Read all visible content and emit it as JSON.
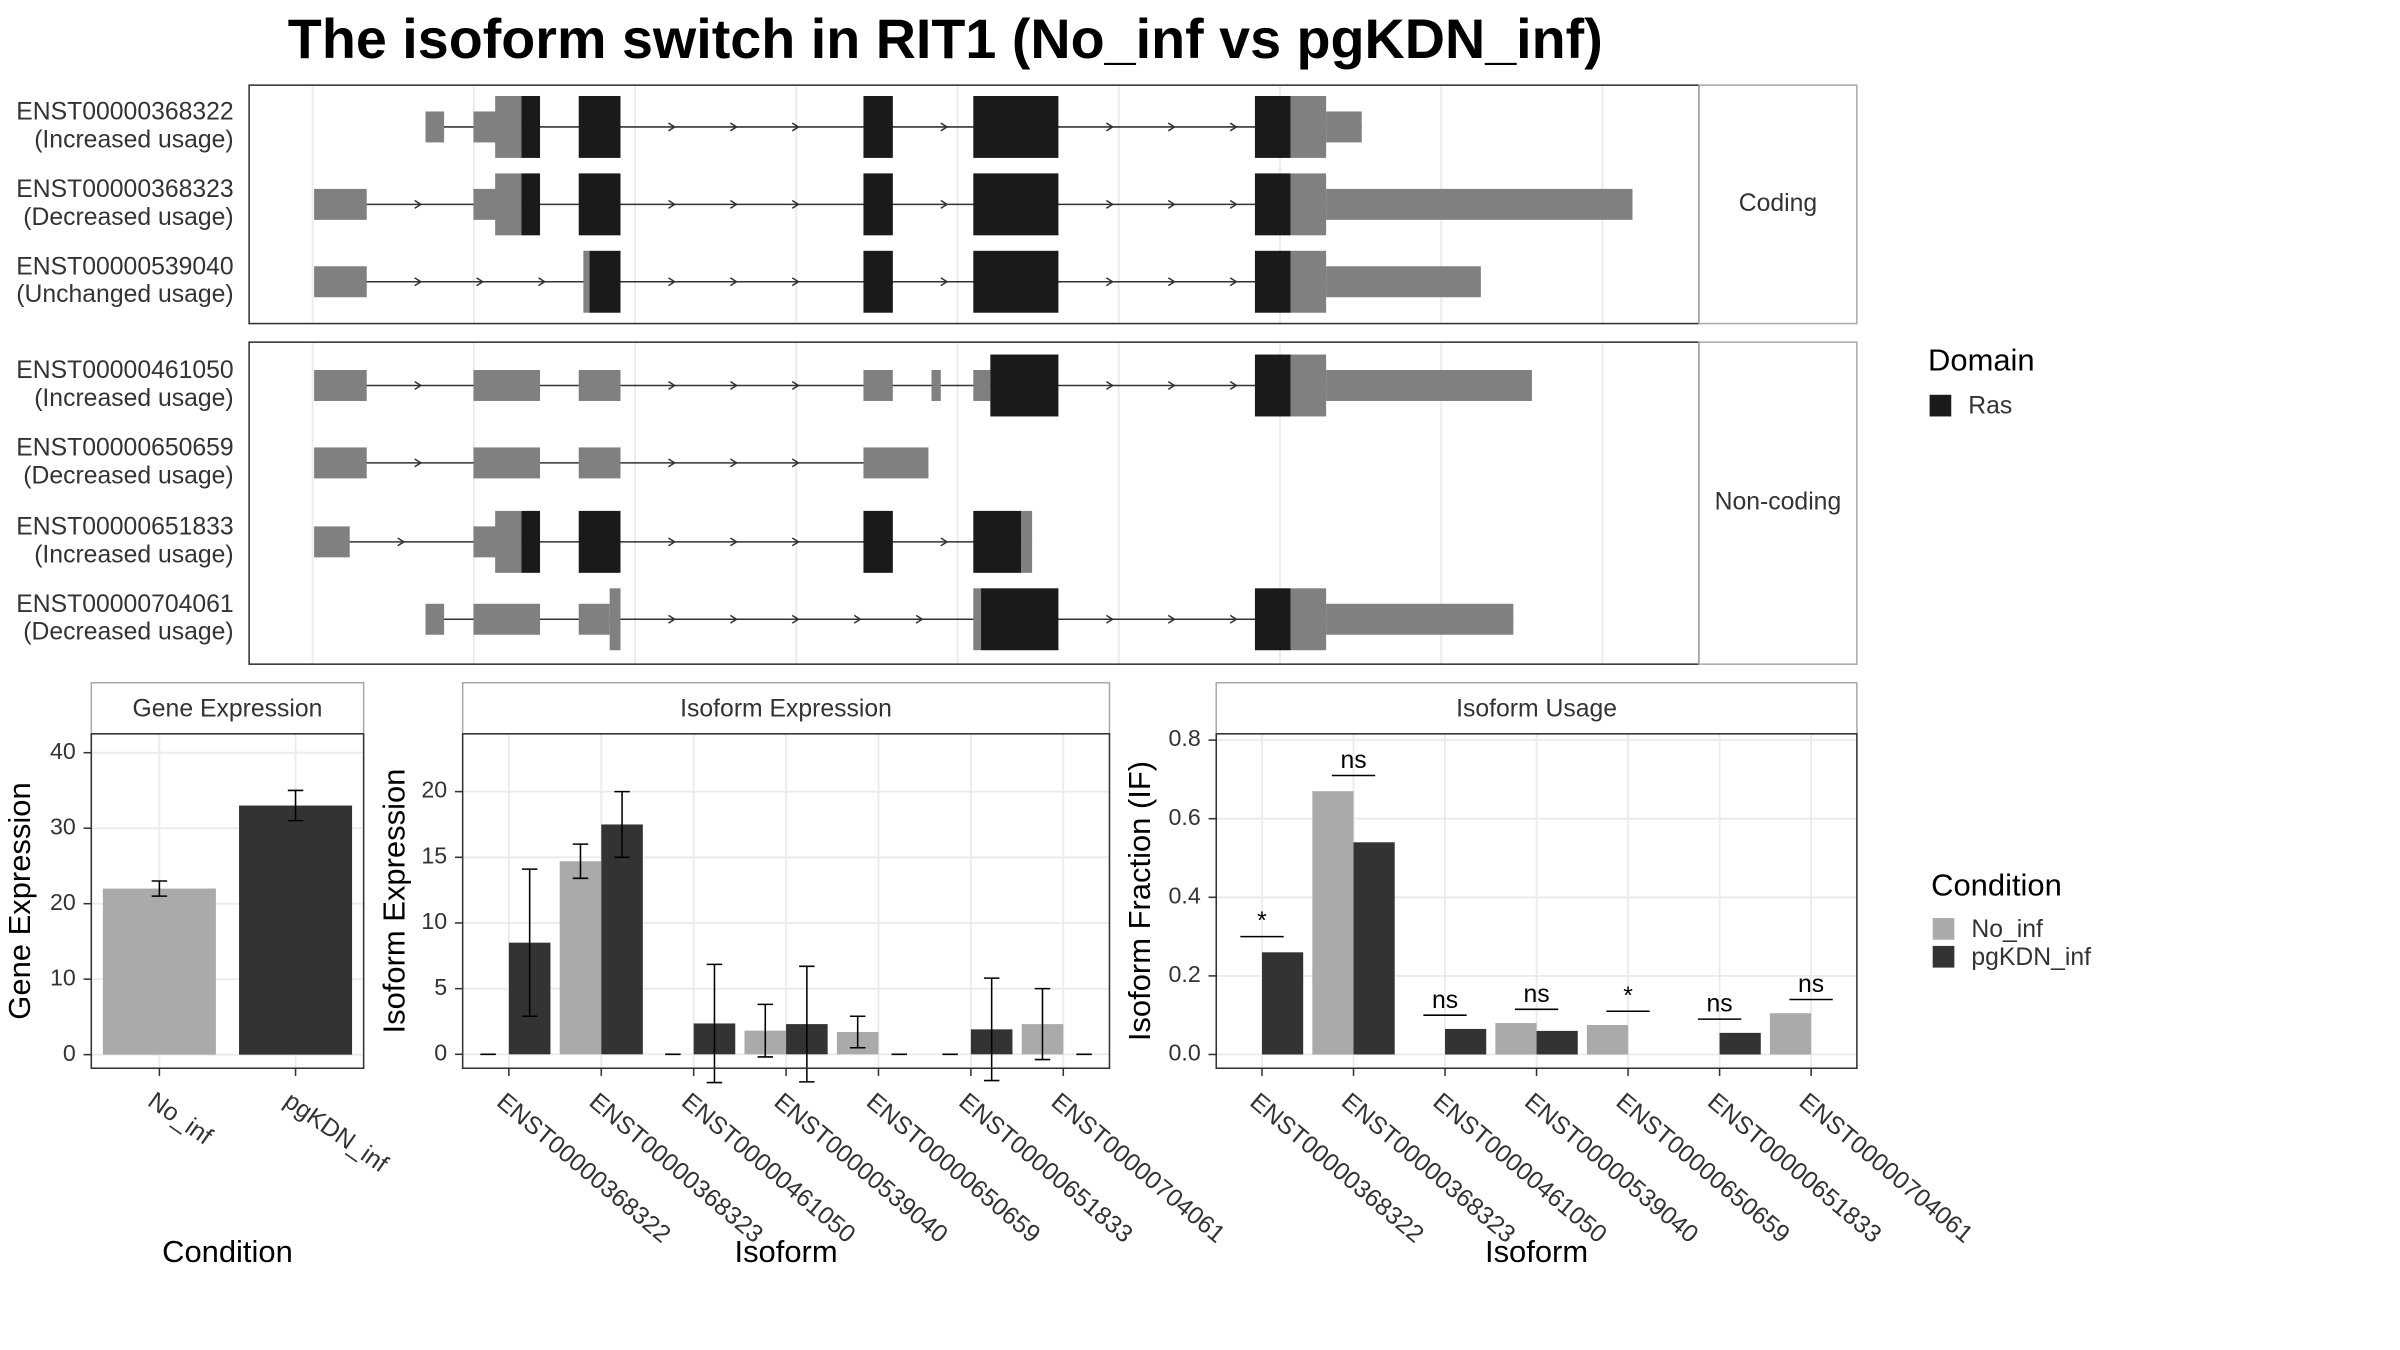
{
  "title": "The isoform switch in RIT1 (No_inf vs pgKDN_inf)",
  "transcript_plot": {
    "groups": [
      {
        "label": "Coding",
        "transcripts": [
          {
            "id": "ENST00000368322",
            "usage": "(Increased usage)"
          },
          {
            "id": "ENST00000368323",
            "usage": "(Decreased usage)"
          },
          {
            "id": "ENST00000539040",
            "usage": "(Unchanged usage)"
          }
        ]
      },
      {
        "label": "Non-coding",
        "transcripts": [
          {
            "id": "ENST00000461050",
            "usage": "(Increased usage)"
          },
          {
            "id": "ENST00000650659",
            "usage": "(Decreased usage)"
          },
          {
            "id": "ENST00000651833",
            "usage": "(Increased usage)"
          },
          {
            "id": "ENST00000704061",
            "usage": "(Decreased usage)"
          }
        ]
      }
    ],
    "legend_title": "Domain",
    "domains": [
      {
        "name": "Ras",
        "color": "#1a1a1a"
      }
    ]
  },
  "chart_data": [
    {
      "type": "bar",
      "title": "Gene Expression",
      "xlabel": "Condition",
      "ylabel": "Gene Expression",
      "categories": [
        "No_inf",
        "pgKDN_inf"
      ],
      "values": [
        22,
        33
      ],
      "errors": [
        1,
        2
      ],
      "colors": [
        "#aaaaaa",
        "#333333"
      ],
      "ylim": [
        -1.8,
        42.5
      ],
      "yticks": [
        0,
        10,
        20,
        30,
        40
      ],
      "grid": true
    },
    {
      "type": "bar",
      "title": "Isoform Expression",
      "xlabel": "Isoform",
      "ylabel": "Isoform Expression",
      "categories": [
        "ENST00000368322",
        "ENST00000368323",
        "ENST00000461050",
        "ENST00000539040",
        "ENST00000650659",
        "ENST00000651833",
        "ENST00000704061"
      ],
      "series": [
        {
          "name": "No_inf",
          "color": "#aaaaaa",
          "values": [
            0,
            14.7,
            0,
            1.8,
            1.7,
            0,
            2.3
          ],
          "errors": [
            0,
            1.3,
            0,
            2,
            1.2,
            0,
            2.7
          ]
        },
        {
          "name": "pgKDN_inf",
          "color": "#333333",
          "values": [
            8.5,
            17.5,
            2.35,
            2.3,
            0,
            1.9,
            0
          ],
          "errors": [
            5.6,
            2.5,
            4.5,
            4.4,
            0,
            3.9,
            0
          ]
        }
      ],
      "ylim": [
        -1.06,
        24.4
      ],
      "yticks": [
        0,
        5,
        10,
        15,
        20
      ],
      "grid": true
    },
    {
      "type": "bar",
      "title": "Isoform Usage",
      "xlabel": "Isoform",
      "ylabel": "Isoform Fraction (IF)",
      "categories": [
        "ENST00000368322",
        "ENST00000368323",
        "ENST00000461050",
        "ENST00000539040",
        "ENST00000650659",
        "ENST00000651833",
        "ENST00000704061"
      ],
      "series": [
        {
          "name": "No_inf",
          "color": "#aaaaaa",
          "values": [
            0,
            0.67,
            0,
            0.08,
            0.075,
            0,
            0.105
          ]
        },
        {
          "name": "pgKDN_inf",
          "color": "#333333",
          "values": [
            0.26,
            0.54,
            0.065,
            0.06,
            0,
            0.055,
            0
          ]
        }
      ],
      "significance": [
        {
          "label": "*",
          "y": 0.3
        },
        {
          "label": "ns",
          "y": 0.71
        },
        {
          "label": "ns",
          "y": 0.1
        },
        {
          "label": "ns",
          "y": 0.115
        },
        {
          "label": "*",
          "y": 0.11
        },
        {
          "label": "ns",
          "y": 0.09
        },
        {
          "label": "ns",
          "y": 0.14
        }
      ],
      "legend_title": "Condition",
      "ylim": [
        -0.035,
        0.816
      ],
      "yticks": [
        {
          "value": 0,
          "label": "0.0"
        },
        0.2,
        0.4,
        0.6,
        0.8
      ],
      "grid": true
    }
  ]
}
